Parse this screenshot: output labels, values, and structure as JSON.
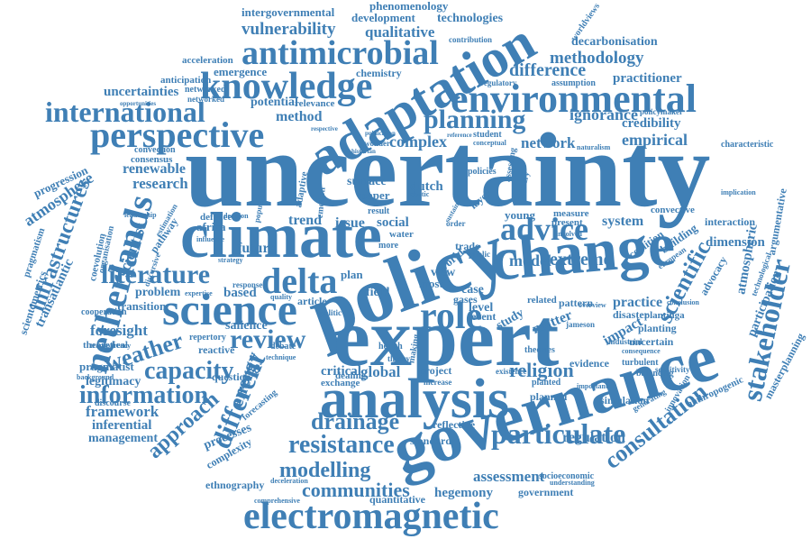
{
  "color": "#3f7fb5",
  "words": [
    "uncertainty",
    "policy",
    "expert",
    "governance",
    "climate",
    "change",
    "analysis",
    "adaptation",
    "environmental",
    "science",
    "knowledge",
    "electromagnetic",
    "antimicrobial",
    "perspective",
    "international",
    "planning",
    "netherlands",
    "delta",
    "role",
    "advice",
    "review",
    "literature",
    "particulate",
    "stakeholder",
    "resistance",
    "information",
    "infrastructures",
    "different",
    "capacity",
    "weather",
    "drainage",
    "consultation",
    "modelling",
    "communities",
    "approach",
    "energy",
    "religion",
    "scientific",
    "methodology",
    "difference",
    "vulnerability",
    "qualitative",
    "development",
    "intergovernmental",
    "phenomenology",
    "technologies",
    "decarbonisation",
    "practitioner",
    "empirical",
    "credibility",
    "ignorance",
    "network",
    "complex",
    "method",
    "potential",
    "uncertainties",
    "emergence",
    "acceleration",
    "anticipation",
    "networked",
    "renewable",
    "research",
    "consensus",
    "convection",
    "progression",
    "atmosphere",
    "pragmatism",
    "scientometrics",
    "transatlantic",
    "scientist",
    "framework",
    "inferential",
    "management",
    "legitimacy",
    "pragmatist",
    "theoretical",
    "foresight",
    "transition",
    "problem",
    "cooperation",
    "based",
    "salience",
    "future",
    "trend",
    "issue",
    "social",
    "model",
    "extreme",
    "dimension",
    "atmospheric",
    "advocacy",
    "system",
    "practice",
    "impact",
    "matter",
    "study",
    "level",
    "case",
    "pattern",
    "disaster",
    "uncertain",
    "evidence",
    "regulation",
    "simulation",
    "anthropogenic",
    "participation",
    "argumentative",
    "masterplanning",
    "technological",
    "interaction",
    "coalition",
    "european",
    "planted",
    "assessment",
    "hegemony",
    "government",
    "socioeconomic",
    "standard",
    "reflective",
    "project",
    "critical",
    "global",
    "processes",
    "complexity",
    "ethnography",
    "quantitative",
    "forecasting",
    "africa",
    "defence",
    "young",
    "convective",
    "surface",
    "paper",
    "dutch",
    "layer",
    "chemistry",
    "regulatory",
    "assumption",
    "characteristic",
    "policymaker",
    "worldviews",
    "contribution",
    "relevance",
    "networked",
    "opportunities",
    "student",
    "conceptual",
    "reference",
    "publication",
    "historian",
    "naturalism",
    "wonder",
    "respective",
    "related",
    "present",
    "measure",
    "question",
    "reactive",
    "repertory",
    "discourse",
    "deceleration",
    "comprehensive",
    "understanding",
    "increase",
    "existence",
    "theories",
    "making",
    "health",
    "debate",
    "response",
    "article",
    "plan",
    "field",
    "most",
    "view",
    "world",
    "gases",
    "event",
    "public",
    "trade",
    "water",
    "order",
    "more",
    "result",
    "politic",
    "dealing",
    "exchange",
    "theory",
    "planned",
    "important",
    "turbulent",
    "planting",
    "balancing",
    "generating",
    "innovation",
    "industrial",
    "consequence",
    "sensitivity",
    "jameson",
    "plantinga",
    "building",
    "discursive",
    "pathway",
    "coevolution",
    "organisation",
    "estimation",
    "leadership",
    "population",
    "emotion",
    "adaptive",
    "implication",
    "elastic",
    "policies",
    "overview",
    "involved",
    "sustain",
    "background",
    "transparency",
    "decision",
    "influence",
    "strategy",
    "conclusion",
    "expertise",
    "quality",
    "technique",
    "primary",
    "assessing"
  ]
}
